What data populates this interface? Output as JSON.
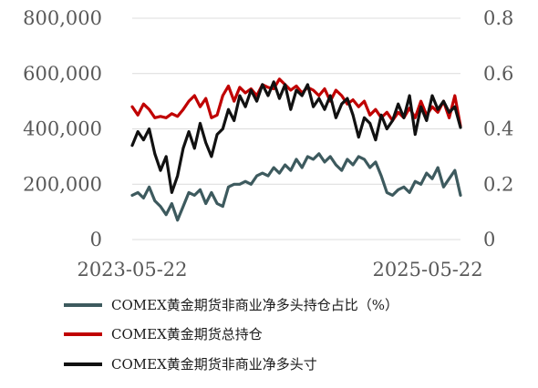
{
  "chart_data": {
    "type": "line",
    "title": "",
    "xlabel": "",
    "y_left": {
      "label": "",
      "range": [
        0,
        800000
      ],
      "ticks": [
        0,
        200000,
        400000,
        600000,
        800000
      ],
      "tick_labels": [
        "0",
        "200,000",
        "400,000",
        "600,000",
        "800,000"
      ]
    },
    "y_right": {
      "label": "",
      "range": [
        0,
        0.8
      ],
      "ticks": [
        0,
        0.2,
        0.4,
        0.6,
        0.8
      ],
      "tick_labels": [
        "0",
        "0.2",
        "0.4",
        "0.6",
        "0.8"
      ]
    },
    "x_tick_labels": [
      "2023-05-22",
      "2025-05-22"
    ],
    "x_range": [
      "2023-05-22",
      "2025-08-11"
    ],
    "grid": "horizontal",
    "legend": "bottom",
    "series": [
      {
        "name": "COMEX黄金期货非商业净多头持仓占比（%）",
        "axis": "right",
        "color": "#3d5a5e",
        "x": [
          "2023-05-22",
          "2023-06-05",
          "2023-06-19",
          "2023-07-03",
          "2023-07-17",
          "2023-07-31",
          "2023-08-14",
          "2023-08-28",
          "2023-09-11",
          "2023-09-25",
          "2023-10-09",
          "2023-10-23",
          "2023-11-06",
          "2023-11-20",
          "2023-12-04",
          "2023-12-18",
          "2024-01-01",
          "2024-01-15",
          "2024-01-29",
          "2024-02-12",
          "2024-02-26",
          "2024-03-11",
          "2024-03-25",
          "2024-04-08",
          "2024-04-22",
          "2024-05-06",
          "2024-05-20",
          "2024-06-03",
          "2024-06-17",
          "2024-07-01",
          "2024-07-15",
          "2024-07-29",
          "2024-08-12",
          "2024-08-26",
          "2024-09-09",
          "2024-09-23",
          "2024-10-07",
          "2024-10-21",
          "2024-11-04",
          "2024-11-18",
          "2024-12-02",
          "2024-12-16",
          "2024-12-30",
          "2025-01-13",
          "2025-01-27",
          "2025-02-10",
          "2025-02-24",
          "2025-03-10",
          "2025-03-24",
          "2025-04-07",
          "2025-04-21",
          "2025-05-05",
          "2025-05-19",
          "2025-06-02",
          "2025-06-16",
          "2025-06-30",
          "2025-07-14",
          "2025-07-28",
          "2025-08-11"
        ],
        "values": [
          0.16,
          0.17,
          0.15,
          0.19,
          0.14,
          0.12,
          0.09,
          0.13,
          0.07,
          0.12,
          0.17,
          0.16,
          0.18,
          0.13,
          0.17,
          0.13,
          0.12,
          0.19,
          0.2,
          0.2,
          0.21,
          0.2,
          0.23,
          0.24,
          0.23,
          0.26,
          0.24,
          0.27,
          0.25,
          0.29,
          0.26,
          0.3,
          0.29,
          0.31,
          0.28,
          0.3,
          0.27,
          0.25,
          0.29,
          0.27,
          0.3,
          0.29,
          0.26,
          0.28,
          0.23,
          0.17,
          0.16,
          0.18,
          0.19,
          0.17,
          0.21,
          0.2,
          0.24,
          0.22,
          0.26,
          0.19,
          0.22,
          0.25,
          0.16
        ]
      },
      {
        "name": "COMEX黄金期货总持仓",
        "axis": "left",
        "color": "#c00000",
        "x": [
          "2023-05-22",
          "2023-06-05",
          "2023-06-19",
          "2023-07-03",
          "2023-07-17",
          "2023-07-31",
          "2023-08-14",
          "2023-08-28",
          "2023-09-11",
          "2023-09-25",
          "2023-10-09",
          "2023-10-23",
          "2023-11-06",
          "2023-11-20",
          "2023-12-04",
          "2023-12-18",
          "2024-01-01",
          "2024-01-15",
          "2024-01-29",
          "2024-02-12",
          "2024-02-26",
          "2024-03-11",
          "2024-03-25",
          "2024-04-08",
          "2024-04-22",
          "2024-05-06",
          "2024-05-20",
          "2024-06-03",
          "2024-06-17",
          "2024-07-01",
          "2024-07-15",
          "2024-07-29",
          "2024-08-12",
          "2024-08-26",
          "2024-09-09",
          "2024-09-23",
          "2024-10-07",
          "2024-10-21",
          "2024-11-04",
          "2024-11-18",
          "2024-12-02",
          "2024-12-16",
          "2024-12-30",
          "2025-01-13",
          "2025-01-27",
          "2025-02-10",
          "2025-02-24",
          "2025-03-10",
          "2025-03-24",
          "2025-04-07",
          "2025-04-21",
          "2025-05-05",
          "2025-05-19",
          "2025-06-02",
          "2025-06-16",
          "2025-06-30",
          "2025-07-14",
          "2025-07-28",
          "2025-08-11"
        ],
        "values": [
          480000,
          450000,
          490000,
          470000,
          440000,
          445000,
          440000,
          455000,
          445000,
          470000,
          500000,
          520000,
          480000,
          510000,
          440000,
          450000,
          520000,
          555000,
          500000,
          550000,
          530000,
          545000,
          520000,
          560000,
          550000,
          545000,
          580000,
          560000,
          540000,
          555000,
          530000,
          550000,
          540000,
          520000,
          545000,
          500000,
          540000,
          520000,
          490000,
          505000,
          480000,
          500000,
          450000,
          470000,
          440000,
          460000,
          430000,
          460000,
          440000,
          475000,
          440000,
          500000,
          450000,
          480000,
          460000,
          500000,
          440000,
          520000,
          410000
        ]
      },
      {
        "name": "COMEX黄金期货非商业净多头寸",
        "axis": "left",
        "color": "#111111",
        "x": [
          "2023-05-22",
          "2023-06-05",
          "2023-06-19",
          "2023-07-03",
          "2023-07-17",
          "2023-07-31",
          "2023-08-14",
          "2023-08-28",
          "2023-09-11",
          "2023-09-25",
          "2023-10-09",
          "2023-10-23",
          "2023-11-06",
          "2023-11-20",
          "2023-12-04",
          "2023-12-18",
          "2024-01-01",
          "2024-01-15",
          "2024-01-29",
          "2024-02-12",
          "2024-02-26",
          "2024-03-11",
          "2024-03-25",
          "2024-04-08",
          "2024-04-22",
          "2024-05-06",
          "2024-05-20",
          "2024-06-03",
          "2024-06-17",
          "2024-07-01",
          "2024-07-15",
          "2024-07-29",
          "2024-08-12",
          "2024-08-26",
          "2024-09-09",
          "2024-09-23",
          "2024-10-07",
          "2024-10-21",
          "2024-11-04",
          "2024-11-18",
          "2024-12-02",
          "2024-12-16",
          "2024-12-30",
          "2025-01-13",
          "2025-01-27",
          "2025-02-10",
          "2025-02-24",
          "2025-03-10",
          "2025-03-24",
          "2025-04-07",
          "2025-04-21",
          "2025-05-05",
          "2025-05-19",
          "2025-06-02",
          "2025-06-16",
          "2025-06-30",
          "2025-07-14",
          "2025-07-28",
          "2025-08-11"
        ],
        "values": [
          340000,
          390000,
          360000,
          400000,
          310000,
          250000,
          300000,
          170000,
          230000,
          330000,
          390000,
          330000,
          420000,
          350000,
          300000,
          380000,
          400000,
          470000,
          430000,
          520000,
          480000,
          540000,
          500000,
          560000,
          520000,
          570000,
          510000,
          560000,
          470000,
          540000,
          520000,
          560000,
          480000,
          510000,
          470000,
          520000,
          440000,
          490000,
          510000,
          450000,
          370000,
          440000,
          420000,
          360000,
          450000,
          400000,
          430000,
          490000,
          440000,
          520000,
          380000,
          480000,
          430000,
          520000,
          470000,
          500000,
          460000,
          480000,
          405000
        ]
      }
    ]
  }
}
